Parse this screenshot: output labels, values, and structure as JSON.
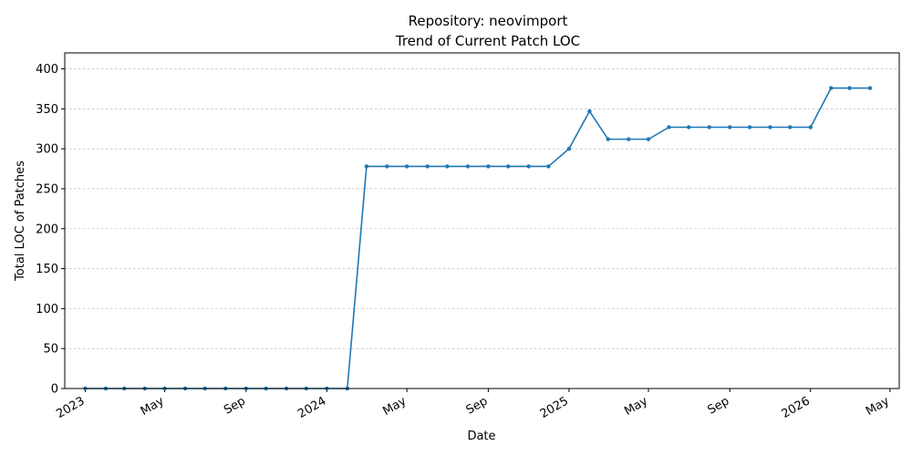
{
  "chart_data": {
    "type": "line",
    "title": "Repository: neovimport",
    "subtitle": "Trend of Current Patch LOC",
    "xlabel": "Date",
    "ylabel": "Total LOC of Patches",
    "xlim": [
      "2022-12-01",
      "2026-05-15"
    ],
    "ylim": [
      0,
      420
    ],
    "yticks": [
      0,
      50,
      100,
      150,
      200,
      250,
      300,
      350,
      400
    ],
    "xticks": [
      {
        "date": "2023-01-01",
        "label": "2023"
      },
      {
        "date": "2023-05-01",
        "label": "May"
      },
      {
        "date": "2023-09-01",
        "label": "Sep"
      },
      {
        "date": "2024-01-01",
        "label": "2024"
      },
      {
        "date": "2024-05-01",
        "label": "May"
      },
      {
        "date": "2024-09-01",
        "label": "Sep"
      },
      {
        "date": "2025-01-01",
        "label": "2025"
      },
      {
        "date": "2025-05-01",
        "label": "May"
      },
      {
        "date": "2025-09-01",
        "label": "Sep"
      },
      {
        "date": "2026-01-01",
        "label": "2026"
      },
      {
        "date": "2026-05-01",
        "label": "May"
      }
    ],
    "grid": "y",
    "series": [
      {
        "color": "#1f77b4",
        "points": [
          {
            "x": "2023-01-01",
            "y": 0
          },
          {
            "x": "2023-02-01",
            "y": 0
          },
          {
            "x": "2023-03-01",
            "y": 0
          },
          {
            "x": "2023-04-01",
            "y": 0
          },
          {
            "x": "2023-05-01",
            "y": 0
          },
          {
            "x": "2023-06-01",
            "y": 0
          },
          {
            "x": "2023-07-01",
            "y": 0
          },
          {
            "x": "2023-08-01",
            "y": 0
          },
          {
            "x": "2023-09-01",
            "y": 0
          },
          {
            "x": "2023-10-01",
            "y": 0
          },
          {
            "x": "2023-11-01",
            "y": 0
          },
          {
            "x": "2023-12-01",
            "y": 0
          },
          {
            "x": "2024-01-01",
            "y": 0
          },
          {
            "x": "2024-02-01",
            "y": 0
          },
          {
            "x": "2024-03-01",
            "y": 278
          },
          {
            "x": "2024-04-01",
            "y": 278
          },
          {
            "x": "2024-05-01",
            "y": 278
          },
          {
            "x": "2024-06-01",
            "y": 278
          },
          {
            "x": "2024-07-01",
            "y": 278
          },
          {
            "x": "2024-08-01",
            "y": 278
          },
          {
            "x": "2024-09-01",
            "y": 278
          },
          {
            "x": "2024-10-01",
            "y": 278
          },
          {
            "x": "2024-11-01",
            "y": 278
          },
          {
            "x": "2024-12-01",
            "y": 278
          },
          {
            "x": "2025-01-01",
            "y": 300
          },
          {
            "x": "2025-02-01",
            "y": 347
          },
          {
            "x": "2025-03-01",
            "y": 312
          },
          {
            "x": "2025-04-01",
            "y": 312
          },
          {
            "x": "2025-05-01",
            "y": 312
          },
          {
            "x": "2025-06-01",
            "y": 327
          },
          {
            "x": "2025-07-01",
            "y": 327
          },
          {
            "x": "2025-08-01",
            "y": 327
          },
          {
            "x": "2025-09-01",
            "y": 327
          },
          {
            "x": "2025-10-01",
            "y": 327
          },
          {
            "x": "2025-11-01",
            "y": 327
          },
          {
            "x": "2025-12-01",
            "y": 327
          },
          {
            "x": "2026-01-01",
            "y": 327
          },
          {
            "x": "2026-02-01",
            "y": 376
          },
          {
            "x": "2026-03-01",
            "y": 376
          },
          {
            "x": "2026-04-01",
            "y": 376
          }
        ]
      }
    ]
  }
}
